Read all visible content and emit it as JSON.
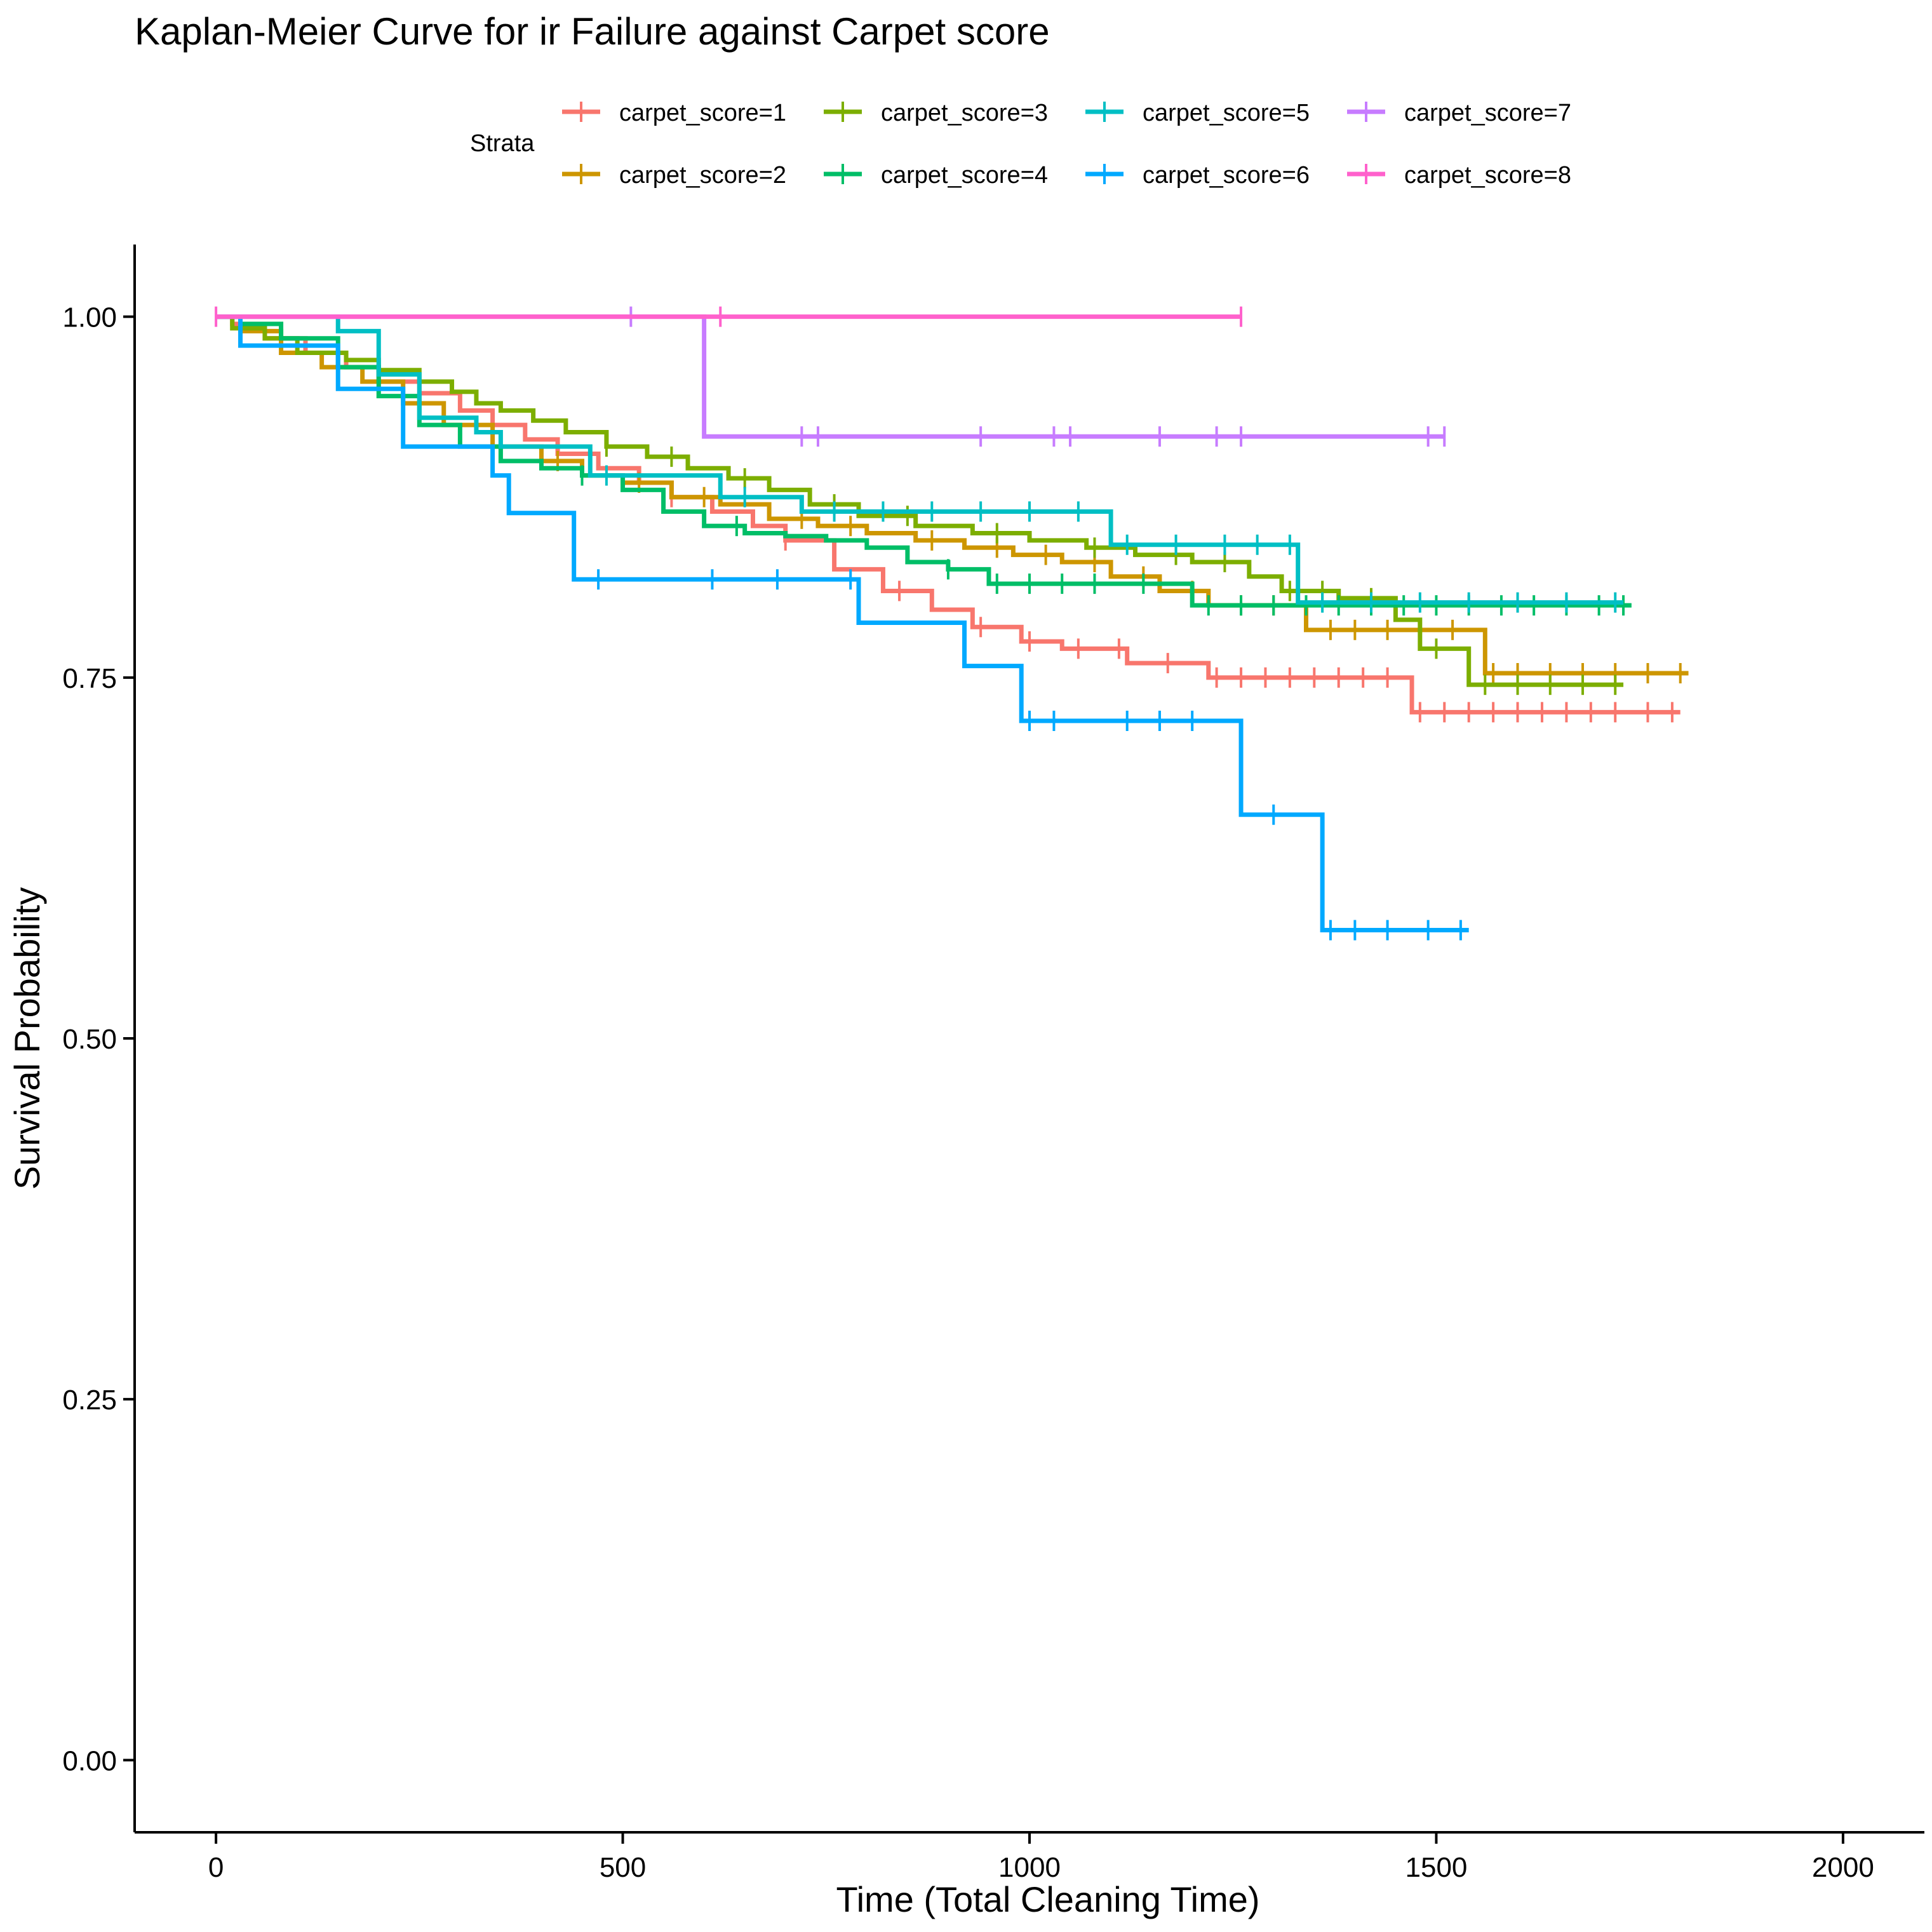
{
  "chart_data": {
    "type": "line",
    "step": true,
    "title": "Kaplan-Meier Curve for ir Failure against Carpet score",
    "xlabel": "Time (Total Cleaning Time)",
    "ylabel": "Survival Probability",
    "xlim": [
      -100,
      2100
    ],
    "ylim": [
      -0.05,
      1.05
    ],
    "xticks": [
      0,
      500,
      1000,
      1500,
      2000
    ],
    "xtick_labels": [
      "0",
      "500",
      "1000",
      "1500",
      "2000"
    ],
    "yticks": [
      0,
      0.25,
      0.5,
      0.75,
      1.0
    ],
    "ytick_labels": [
      "0.00",
      "0.25",
      "0.50",
      "0.75",
      "1.00"
    ],
    "grid": false,
    "legend": {
      "title": "Strata",
      "position": "top",
      "entries": [
        {
          "label": "carpet_score=1",
          "color": "#F8766D"
        },
        {
          "label": "carpet_score=2",
          "color": "#CD9600"
        },
        {
          "label": "carpet_score=3",
          "color": "#7CAE00"
        },
        {
          "label": "carpet_score=4",
          "color": "#00BE67"
        },
        {
          "label": "carpet_score=5",
          "color": "#00BFC4"
        },
        {
          "label": "carpet_score=6",
          "color": "#00A9FF"
        },
        {
          "label": "carpet_score=7",
          "color": "#C77CFF"
        },
        {
          "label": "carpet_score=8",
          "color": "#FF61CC"
        }
      ]
    },
    "series": [
      {
        "name": "carpet_score=1",
        "color": "#F8766D",
        "x": [
          0,
          20,
          60,
          110,
          160,
          200,
          250,
          300,
          340,
          380,
          420,
          470,
          520,
          560,
          610,
          660,
          700,
          760,
          820,
          880,
          930,
          990,
          1040,
          1120,
          1220,
          1470
        ],
        "y": [
          1.0,
          0.995,
          0.985,
          0.975,
          0.965,
          0.955,
          0.947,
          0.935,
          0.925,
          0.915,
          0.905,
          0.895,
          0.885,
          0.875,
          0.865,
          0.855,
          0.845,
          0.825,
          0.81,
          0.797,
          0.785,
          0.775,
          0.77,
          0.76,
          0.75,
          0.726
        ],
        "end": 1800,
        "censor": [
          560,
          700,
          840,
          940,
          1000,
          1060,
          1110,
          1170,
          1230,
          1260,
          1290,
          1320,
          1350,
          1380,
          1410,
          1440,
          1480,
          1510,
          1540,
          1570,
          1600,
          1630,
          1660,
          1690,
          1720,
          1760,
          1790
        ]
      },
      {
        "name": "carpet_score=2",
        "color": "#CD9600",
        "x": [
          0,
          30,
          80,
          130,
          180,
          230,
          280,
          340,
          400,
          450,
          500,
          560,
          620,
          680,
          740,
          800,
          860,
          920,
          980,
          1040,
          1100,
          1160,
          1220,
          1340,
          1560
        ],
        "y": [
          1.0,
          0.99,
          0.975,
          0.965,
          0.955,
          0.94,
          0.925,
          0.91,
          0.9,
          0.89,
          0.885,
          0.875,
          0.87,
          0.86,
          0.855,
          0.85,
          0.845,
          0.84,
          0.835,
          0.83,
          0.82,
          0.81,
          0.8,
          0.783,
          0.753
        ],
        "end": 1810,
        "censor": [
          420,
          520,
          600,
          720,
          780,
          880,
          960,
          1020,
          1080,
          1140,
          1200,
          1260,
          1300,
          1370,
          1400,
          1440,
          1480,
          1520,
          1570,
          1600,
          1640,
          1680,
          1720,
          1760,
          1800
        ]
      },
      {
        "name": "carpet_score=3",
        "color": "#7CAE00",
        "x": [
          0,
          20,
          60,
          100,
          160,
          200,
          250,
          290,
          320,
          350,
          390,
          430,
          480,
          530,
          580,
          630,
          680,
          730,
          790,
          860,
          930,
          1000,
          1070,
          1130,
          1200,
          1270,
          1310,
          1380,
          1450,
          1480,
          1540
        ],
        "y": [
          1.0,
          0.992,
          0.985,
          0.975,
          0.97,
          0.963,
          0.955,
          0.948,
          0.94,
          0.935,
          0.928,
          0.92,
          0.91,
          0.903,
          0.895,
          0.888,
          0.88,
          0.87,
          0.862,
          0.855,
          0.85,
          0.845,
          0.84,
          0.835,
          0.83,
          0.82,
          0.81,
          0.805,
          0.79,
          0.77,
          0.745
        ],
        "end": 1730,
        "censor": [
          480,
          560,
          650,
          760,
          850,
          960,
          1080,
          1180,
          1240,
          1320,
          1360,
          1420,
          1500,
          1560,
          1600,
          1640,
          1680,
          1720
        ]
      },
      {
        "name": "carpet_score=4",
        "color": "#00BE67",
        "x": [
          0,
          30,
          80,
          150,
          200,
          250,
          300,
          350,
          400,
          450,
          500,
          550,
          600,
          650,
          700,
          750,
          800,
          850,
          900,
          950,
          1200
        ],
        "y": [
          1.0,
          0.995,
          0.985,
          0.965,
          0.945,
          0.925,
          0.91,
          0.9,
          0.895,
          0.89,
          0.88,
          0.865,
          0.855,
          0.85,
          0.848,
          0.845,
          0.84,
          0.83,
          0.825,
          0.815,
          0.8
        ],
        "end": 1740,
        "censor": [
          450,
          640,
          900,
          960,
          1000,
          1040,
          1080,
          1140,
          1220,
          1260,
          1300,
          1340,
          1380,
          1420,
          1460,
          1500,
          1540,
          1580,
          1620,
          1660,
          1700,
          1730
        ]
      },
      {
        "name": "carpet_score=5",
        "color": "#00BFC4",
        "x": [
          0,
          150,
          200,
          250,
          320,
          350,
          460,
          620,
          720,
          1100,
          1330
        ],
        "y": [
          1.0,
          0.99,
          0.96,
          0.93,
          0.92,
          0.91,
          0.89,
          0.875,
          0.865,
          0.842,
          0.802
        ],
        "end": 1730,
        "censor": [
          480,
          650,
          760,
          820,
          880,
          940,
          1000,
          1060,
          1120,
          1180,
          1240,
          1280,
          1320,
          1360,
          1420,
          1480,
          1540,
          1600,
          1660,
          1720
        ]
      },
      {
        "name": "carpet_score=6",
        "color": "#00A9FF",
        "x": [
          0,
          30,
          150,
          230,
          340,
          360,
          440,
          790,
          920,
          990,
          1260,
          1360
        ],
        "y": [
          1.0,
          0.98,
          0.95,
          0.91,
          0.89,
          0.864,
          0.818,
          0.788,
          0.758,
          0.72,
          0.655,
          0.575
        ],
        "end": 1540,
        "censor": [
          470,
          610,
          690,
          780,
          1000,
          1030,
          1120,
          1160,
          1200,
          1300,
          1370,
          1400,
          1440,
          1490,
          1530
        ]
      },
      {
        "name": "carpet_score=7",
        "color": "#C77CFF",
        "x": [
          0,
          600
        ],
        "y": [
          1.0,
          0.917
        ],
        "end": 1510,
        "censor": [
          510,
          720,
          740,
          940,
          1030,
          1050,
          1160,
          1230,
          1260,
          1490,
          1510
        ]
      },
      {
        "name": "carpet_score=8",
        "color": "#FF61CC",
        "x": [
          0
        ],
        "y": [
          1.0
        ],
        "end": 1260,
        "censor": [
          0,
          620,
          1260
        ]
      }
    ]
  }
}
